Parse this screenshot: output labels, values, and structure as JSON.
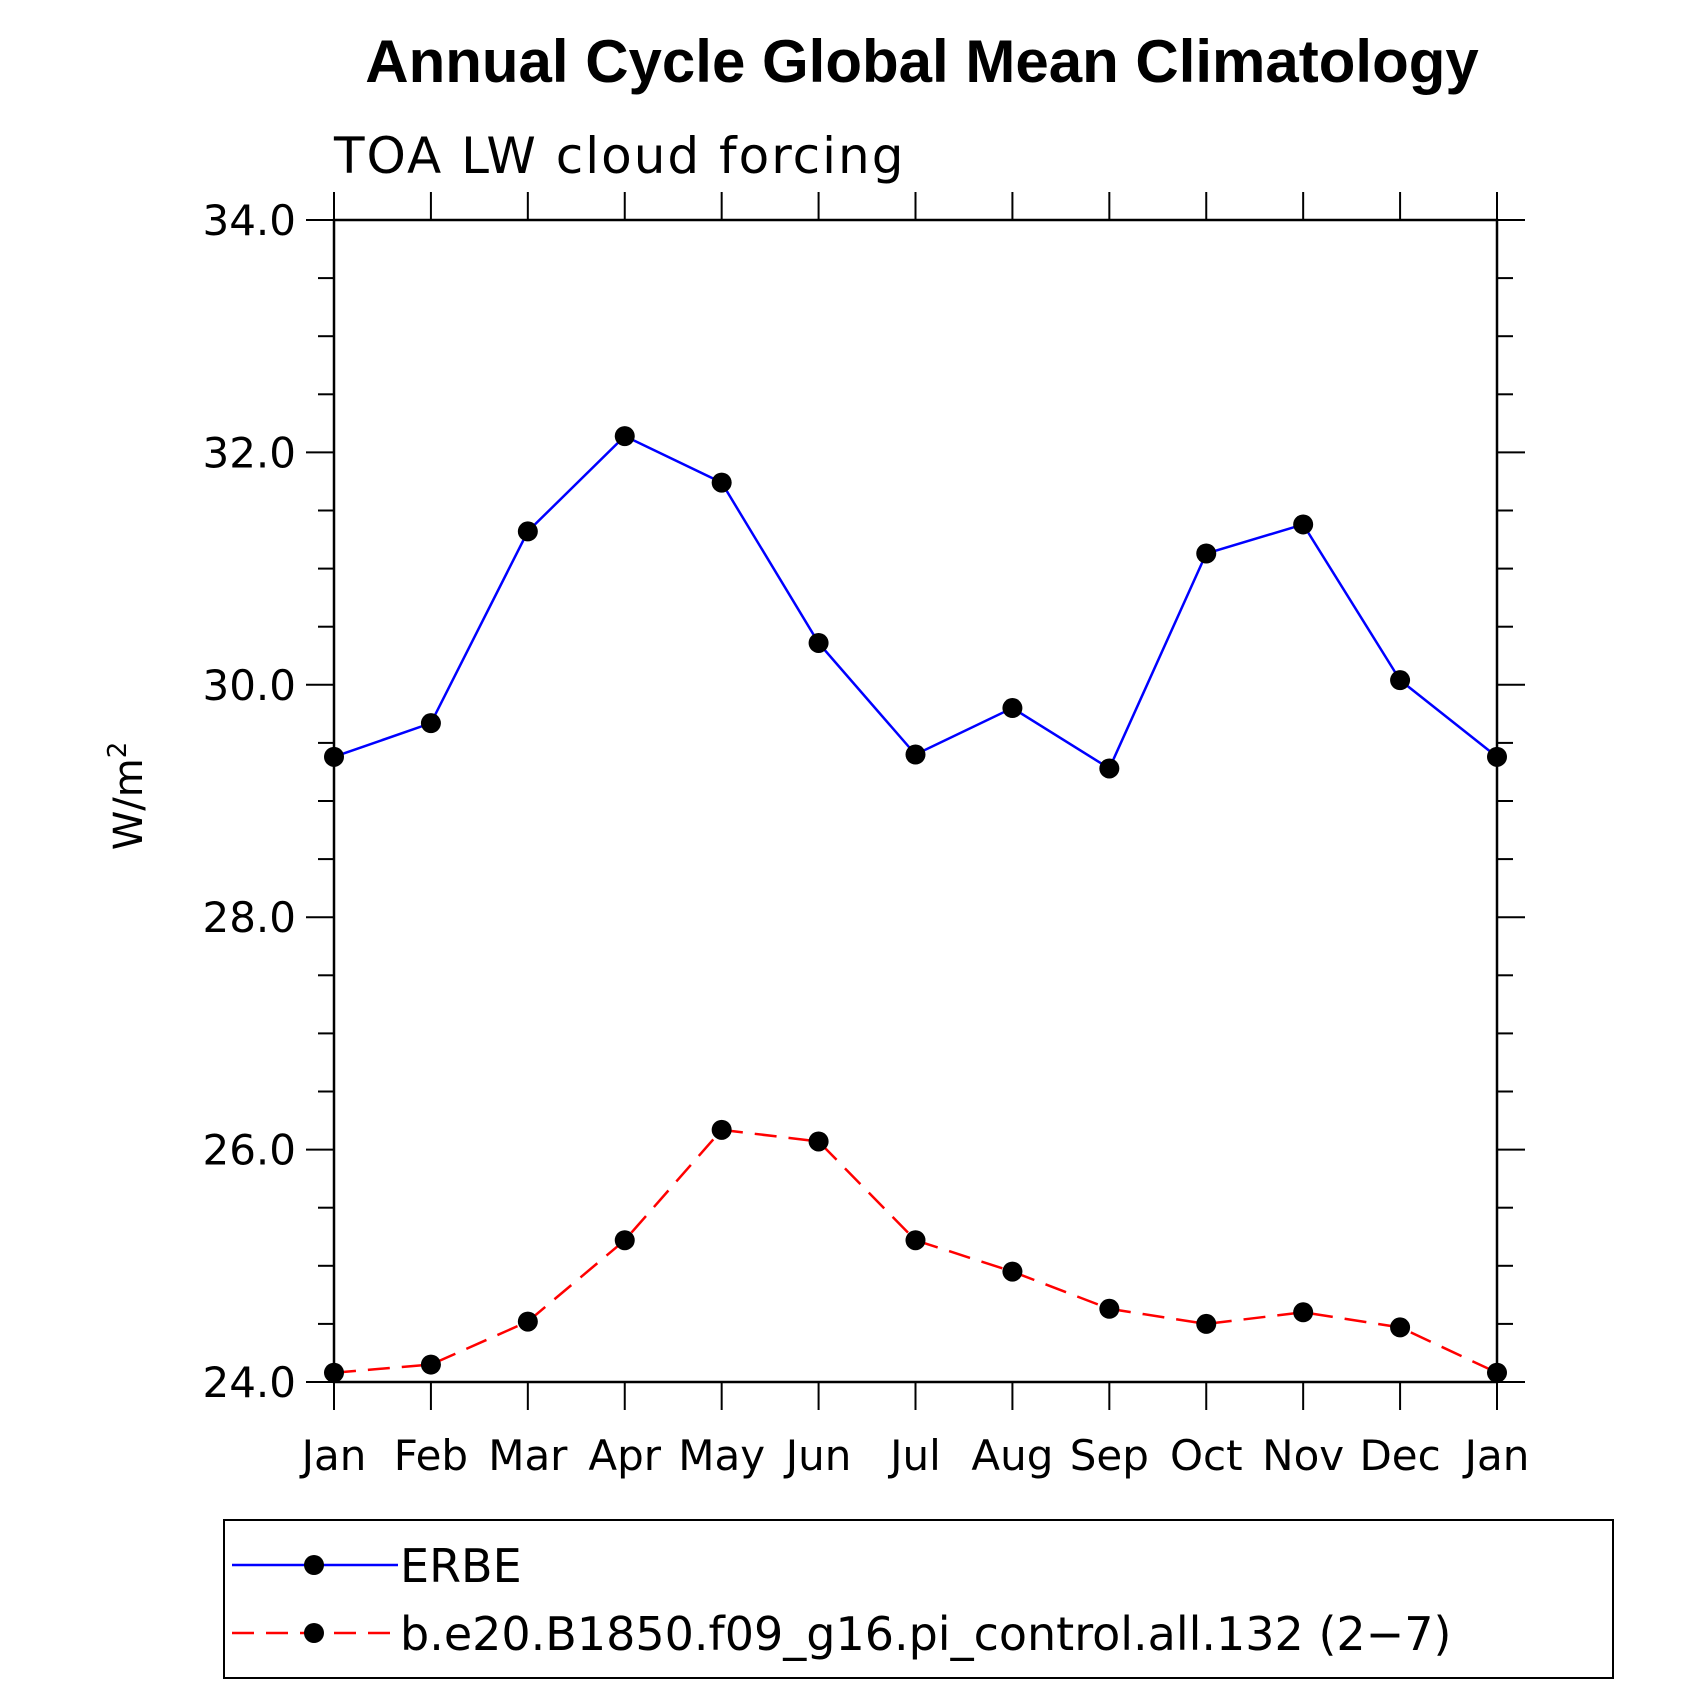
{
  "chart_data": {
    "type": "line",
    "title": "Annual Cycle Global Mean Climatology",
    "subtitle": "TOA LW cloud forcing",
    "xlabel": "",
    "ylabel": "W/m",
    "ylabel_superscript": "2",
    "categories": [
      "Jan",
      "Feb",
      "Mar",
      "Apr",
      "May",
      "Jun",
      "Jul",
      "Aug",
      "Sep",
      "Oct",
      "Nov",
      "Dec",
      "Jan"
    ],
    "ylim": [
      24.0,
      34.0
    ],
    "yticks": [
      "24.0",
      "26.0",
      "28.0",
      "30.0",
      "32.0",
      "34.0"
    ],
    "grid": false,
    "legend_position": "bottom",
    "series": [
      {
        "name": "ERBE",
        "color": "#0000ff",
        "dash": "solid",
        "values": [
          29.38,
          29.67,
          31.32,
          32.14,
          31.74,
          30.36,
          29.4,
          29.8,
          29.28,
          31.13,
          31.38,
          30.04,
          29.38
        ]
      },
      {
        "name": "b.e20.B1850.f09_g16.pi_control.all.132 (2−7)",
        "color": "#ff0000",
        "dash": "dashed",
        "values": [
          24.08,
          24.15,
          24.52,
          25.22,
          26.17,
          26.07,
          25.22,
          24.95,
          24.63,
          24.5,
          24.6,
          24.47,
          24.08
        ]
      }
    ]
  }
}
